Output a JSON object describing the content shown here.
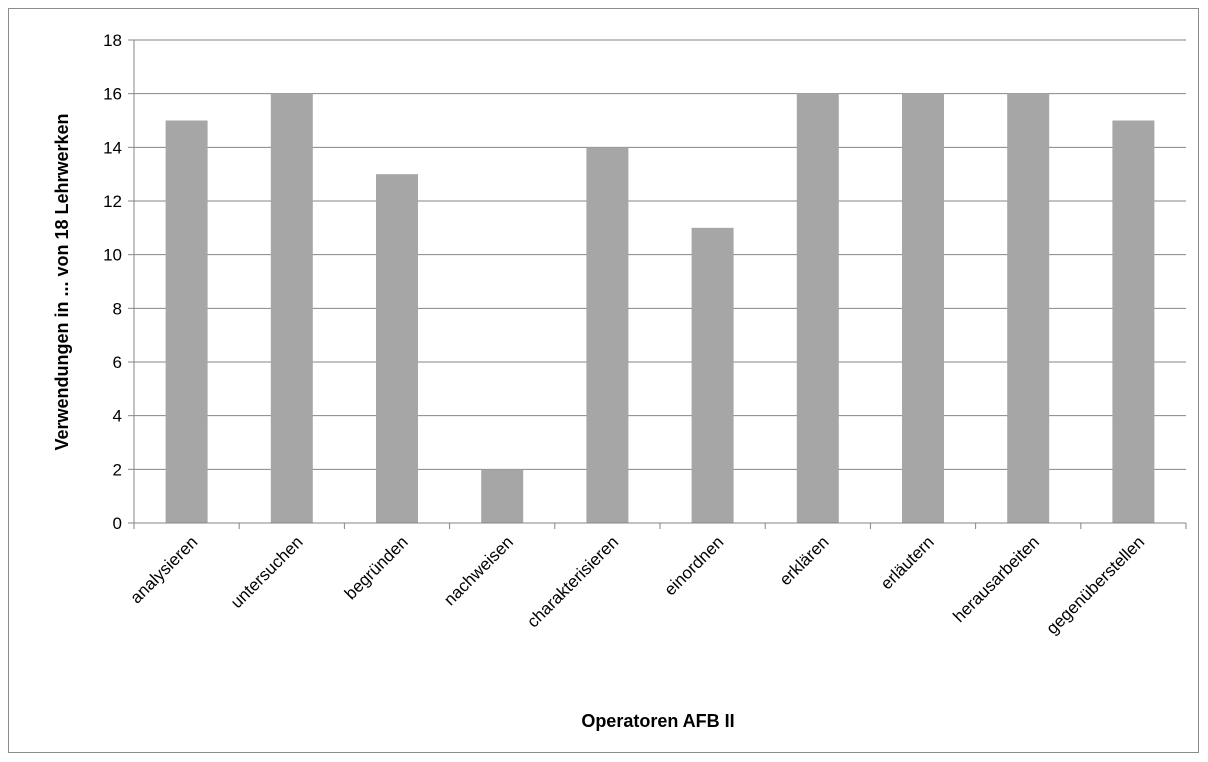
{
  "chart_data": {
    "type": "bar",
    "title": "",
    "xlabel": "Operatoren AFB II",
    "ylabel": "Verwendungen in ... von 18 Lehrwerken",
    "categories": [
      "analysieren",
      "untersuchen",
      "begründen",
      "nachweisen",
      "charakterisieren",
      "einordnen",
      "erklären",
      "erläutern",
      "herausarbeiten",
      "gegenüberstellen"
    ],
    "series": [
      {
        "values": [
          15,
          16,
          13,
          2,
          14,
          11,
          16,
          16,
          16,
          15
        ]
      }
    ],
    "ylim": [
      0,
      18
    ],
    "yticks": [
      "0",
      "2",
      "4",
      "6",
      "8",
      "10",
      "12",
      "14",
      "16",
      "18"
    ],
    "grid": true,
    "legend": "none",
    "colors": {
      "bar": "#a6a6a6",
      "grid": "#868686",
      "axis": "#868686",
      "frame": "#8c8c8c"
    }
  }
}
